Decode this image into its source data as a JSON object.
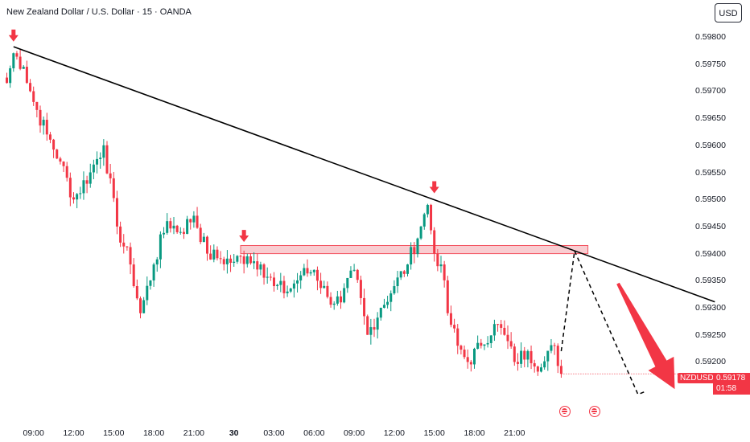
{
  "title": "New Zealand Dollar / U.S. Dollar · 15 · OANDA",
  "currency": "USD",
  "symbol": "NZDUSD",
  "last_price": "0.59178",
  "countdown": "01:58",
  "colors": {
    "up": "#089981",
    "down": "#f23645",
    "trendline": "#000000",
    "zone": "#f8c5c9"
  },
  "icons": [
    "down-arrow-marker-icon",
    "us-flag-event-icon"
  ],
  "chart_data": {
    "type": "candlestick",
    "title": "New Zealand Dollar / U.S. Dollar · 15 · OANDA",
    "y_ticks": [
      "0.59800",
      "0.59750",
      "0.59700",
      "0.59650",
      "0.59600",
      "0.59550",
      "0.59500",
      "0.59450",
      "0.59400",
      "0.59350",
      "0.59300",
      "0.59250",
      "0.59200"
    ],
    "ylim": [
      0.5915,
      0.5983
    ],
    "x_ticks": [
      {
        "label": "09:00",
        "bold": false
      },
      {
        "label": "12:00",
        "bold": false
      },
      {
        "label": "15:00",
        "bold": false
      },
      {
        "label": "18:00",
        "bold": false
      },
      {
        "label": "21:00",
        "bold": false
      },
      {
        "label": "30",
        "bold": true
      },
      {
        "label": "03:00",
        "bold": false
      },
      {
        "label": "06:00",
        "bold": false
      },
      {
        "label": "09:00",
        "bold": false
      },
      {
        "label": "12:00",
        "bold": false
      },
      {
        "label": "15:00",
        "bold": false
      },
      {
        "label": "18:00",
        "bold": false
      },
      {
        "label": "21:00",
        "bold": false
      }
    ],
    "bars_per_hour": 4,
    "first_bar_hours_before_0900": 2,
    "waypoints": [
      [
        0,
        0.59715
      ],
      [
        2,
        0.5977
      ],
      [
        5,
        0.59745
      ],
      [
        8,
        0.5968
      ],
      [
        12,
        0.5962
      ],
      [
        16,
        0.5957
      ],
      [
        20,
        0.595
      ],
      [
        25,
        0.5955
      ],
      [
        29,
        0.596
      ],
      [
        33,
        0.5945
      ],
      [
        37,
        0.5938
      ],
      [
        40,
        0.5929
      ],
      [
        44,
        0.5938
      ],
      [
        48,
        0.5946
      ],
      [
        52,
        0.5944
      ],
      [
        56,
        0.5947
      ],
      [
        60,
        0.594
      ],
      [
        64,
        0.5939
      ],
      [
        68,
        0.59385
      ],
      [
        72,
        0.59395
      ],
      [
        76,
        0.5938
      ],
      [
        80,
        0.5934
      ],
      [
        84,
        0.5933
      ],
      [
        88,
        0.5936
      ],
      [
        92,
        0.5937
      ],
      [
        96,
        0.5932
      ],
      [
        100,
        0.5931
      ],
      [
        104,
        0.5937
      ],
      [
        108,
        0.5925
      ],
      [
        112,
        0.593
      ],
      [
        116,
        0.5934
      ],
      [
        120,
        0.5938
      ],
      [
        124,
        0.5945
      ],
      [
        126,
        0.5949
      ],
      [
        128,
        0.594
      ],
      [
        130,
        0.5938
      ],
      [
        132,
        0.5929
      ],
      [
        135,
        0.5923
      ],
      [
        138,
        0.592
      ],
      [
        142,
        0.5923
      ],
      [
        146,
        0.5927
      ],
      [
        149,
        0.5925
      ],
      [
        152,
        0.592
      ],
      [
        156,
        0.5922
      ],
      [
        160,
        0.5919
      ],
      [
        164,
        0.5923
      ],
      [
        166,
        0.59178
      ]
    ],
    "trendline": {
      "from": [
        2,
        0.59782
      ],
      "to": [
        212,
        0.59311
      ]
    },
    "resistance_zone": {
      "x_from": 70,
      "x_to": 174,
      "y_low": 0.594,
      "y_high": 0.59415
    },
    "markers": [
      {
        "bar": 2,
        "price": 0.5979
      },
      {
        "bar": 128,
        "price": 0.5951
      },
      {
        "bar": 71,
        "price": 0.5942
      }
    ],
    "projection_path": [
      [
        166,
        0.5922
      ],
      [
        170,
        0.59405
      ],
      [
        189,
        0.5914
      ],
      [
        191,
        0.59145
      ]
    ],
    "forecast_arrow": {
      "from": [
        183,
        0.59345
      ],
      "to": [
        200,
        0.5915
      ]
    },
    "events": [
      {
        "bar": 167
      },
      {
        "bar": 176
      }
    ]
  }
}
